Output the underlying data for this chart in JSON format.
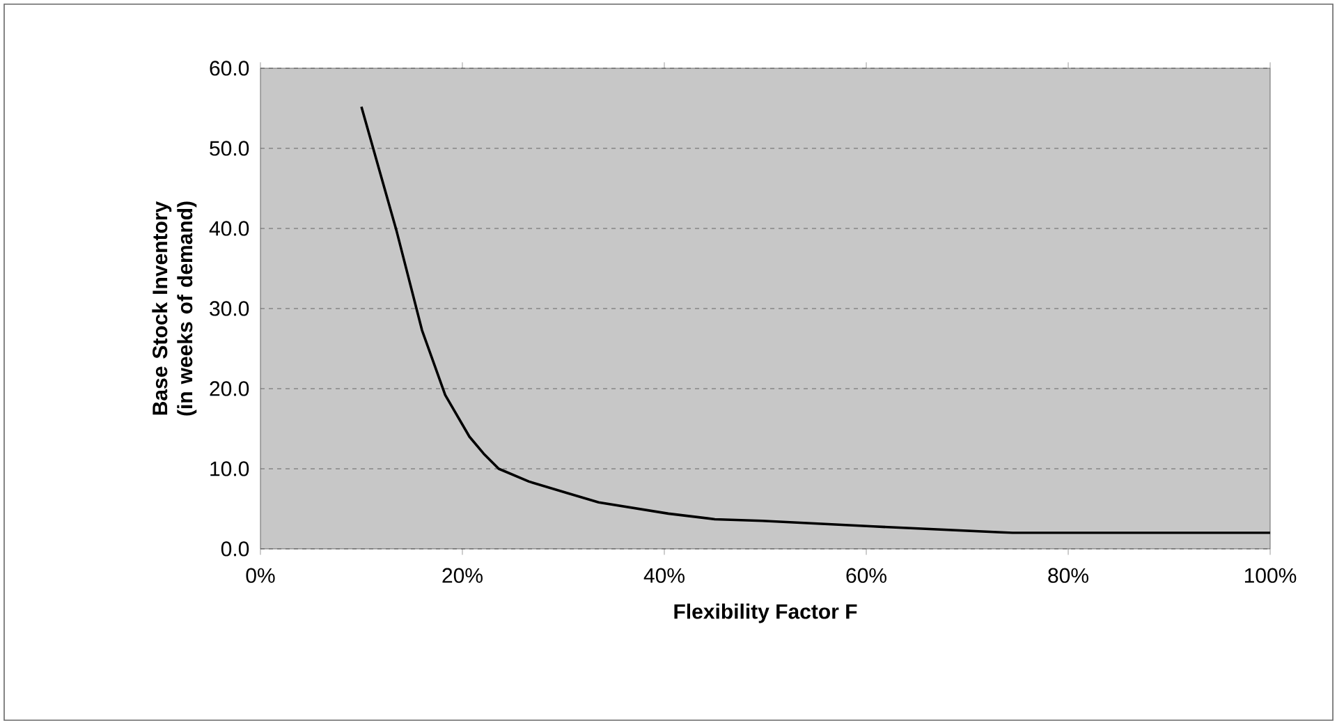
{
  "chart_data": {
    "type": "line",
    "xlabel": "Flexibility Factor F",
    "ylabel": "Base Stock Inventory (in weeks of demand)",
    "x": [
      10,
      13.5,
      16,
      18.3,
      20.7,
      22.1,
      23.6,
      26.6,
      30.3,
      33.5,
      40.4,
      45,
      49.7,
      60.7,
      74.5,
      100
    ],
    "series": [
      {
        "color": "#000000",
        "values": [
          55.2,
          39.6,
          27.3,
          19.2,
          14,
          11.9,
          10,
          8.4,
          7,
          5.8,
          4.4,
          3.7,
          3.5,
          2.8,
          2.0,
          2.0
        ]
      }
    ],
    "xlim": [
      0,
      100
    ],
    "ylim": [
      0,
      60
    ],
    "xticks": [
      {
        "value": 0,
        "label": "0%"
      },
      {
        "value": 20,
        "label": "20%"
      },
      {
        "value": 40,
        "label": "40%"
      },
      {
        "value": 60,
        "label": "60%"
      },
      {
        "value": 80,
        "label": "80%"
      },
      {
        "value": 100,
        "label": "100%"
      }
    ],
    "yticks": [
      {
        "value": 0,
        "label": "0.0"
      },
      {
        "value": 10,
        "label": "10.0"
      },
      {
        "value": 20,
        "label": "20.0"
      },
      {
        "value": 30,
        "label": "30.0"
      },
      {
        "value": 40,
        "label": "40.0"
      },
      {
        "value": 50,
        "label": "50.0"
      },
      {
        "value": 60,
        "label": "60.0"
      }
    ],
    "grid": "y",
    "marker": "none",
    "line_style": "solid"
  }
}
